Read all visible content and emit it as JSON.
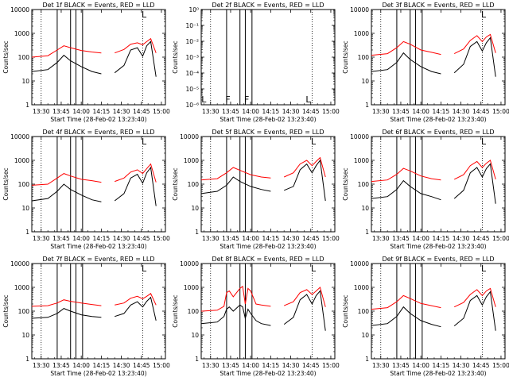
{
  "colors": {
    "events": "#000000",
    "lld": "#ff0000",
    "background": "#ffffff",
    "axes": "#000000"
  },
  "axes_common": {
    "xlabel": "Start Time (28-Feb-02 13:23:40)",
    "ylabel": "Counts/sec",
    "x_tick_labels": [
      "13:30",
      "13:45",
      "14:00",
      "14:15",
      "14:30",
      "14:45",
      "15:00"
    ],
    "x_tick_minutes": [
      30,
      45,
      60,
      75,
      90,
      105,
      120
    ],
    "xlim_minutes_after_13h": [
      23,
      123
    ],
    "ylog": true
  },
  "chart_data": [
    {
      "type": "line",
      "title": "Det 1f BLACK = Events, RED = LLD",
      "ylim": [
        1,
        10000
      ],
      "y_tick_labels": [
        "1",
        "10",
        "100",
        "1000",
        "10000"
      ],
      "flags": [
        {
          "label": "L",
          "t": 107
        }
      ],
      "dotted_lines": [
        30,
        106
      ],
      "solid_lines": [
        42,
        52,
        56,
        61
      ],
      "series": [
        {
          "color": "lld",
          "t": [
            23,
            35,
            42,
            47,
            52,
            60,
            68,
            75,
            78,
            85,
            92,
            97,
            102,
            106,
            109,
            112,
            116
          ],
          "v": [
            100,
            115,
            200,
            300,
            250,
            190,
            165,
            150,
            null,
            150,
            210,
            350,
            400,
            330,
            450,
            600,
            150
          ]
        },
        {
          "color": "events",
          "t": [
            23,
            35,
            42,
            47,
            52,
            60,
            68,
            75,
            78,
            85,
            92,
            97,
            102,
            106,
            109,
            112,
            116
          ],
          "v": [
            25,
            30,
            60,
            120,
            70,
            40,
            25,
            20,
            null,
            22,
            45,
            200,
            250,
            110,
            300,
            450,
            15
          ]
        }
      ]
    },
    {
      "type": "line",
      "title": "Det 2f BLACK = Events, RED = LLD",
      "ylim": [
        1e-06,
        1
      ],
      "y_tick_labels": [
        "10⁻⁶",
        "10⁻⁵",
        "10⁻⁴",
        "10⁻³",
        "10⁻²",
        "10⁻¹",
        "10⁰"
      ],
      "flags": [
        {
          "label": "L",
          "t": 25
        },
        {
          "label": "F",
          "t": 43
        },
        {
          "label": "F",
          "t": 57
        },
        {
          "label": "L",
          "t": 103
        }
      ],
      "dotted_lines": [
        30,
        106
      ],
      "solid_lines": [
        42,
        52,
        56,
        61
      ],
      "series": []
    },
    {
      "type": "line",
      "title": "Det 3f BLACK = Events, RED = LLD",
      "ylim": [
        1,
        10000
      ],
      "y_tick_labels": [
        "1",
        "10",
        "100",
        "1000",
        "10000"
      ],
      "flags": [
        {
          "label": "L",
          "t": 107
        }
      ],
      "dotted_lines": [
        30,
        106
      ],
      "solid_lines": [
        42,
        52,
        56,
        61
      ],
      "series": [
        {
          "color": "lld",
          "t": [
            23,
            35,
            42,
            47,
            52,
            60,
            68,
            75,
            78,
            85,
            92,
            97,
            102,
            106,
            109,
            112,
            116
          ],
          "v": [
            120,
            140,
            250,
            450,
            350,
            200,
            160,
            130,
            null,
            140,
            220,
            500,
            800,
            450,
            700,
            900,
            150
          ]
        },
        {
          "color": "events",
          "t": [
            23,
            35,
            42,
            47,
            52,
            60,
            68,
            75,
            78,
            85,
            92,
            97,
            102,
            106,
            109,
            112,
            116
          ],
          "v": [
            25,
            30,
            60,
            150,
            80,
            40,
            25,
            20,
            null,
            22,
            50,
            280,
            450,
            180,
            400,
            650,
            15
          ]
        }
      ]
    },
    {
      "type": "line",
      "title": "Det 4f BLACK = Events, RED = LLD",
      "ylim": [
        1,
        10000
      ],
      "y_tick_labels": [
        "1",
        "10",
        "100",
        "1000",
        "10000"
      ],
      "flags": [
        {
          "label": "L",
          "t": 107
        }
      ],
      "dotted_lines": [
        30,
        106
      ],
      "solid_lines": [
        42,
        52,
        56,
        61
      ],
      "series": [
        {
          "color": "lld",
          "t": [
            23,
            35,
            42,
            47,
            52,
            60,
            68,
            75,
            78,
            85,
            92,
            97,
            102,
            106,
            109,
            112,
            116
          ],
          "v": [
            90,
            100,
            180,
            280,
            220,
            160,
            140,
            120,
            null,
            130,
            180,
            320,
            400,
            280,
            450,
            700,
            120
          ]
        },
        {
          "color": "events",
          "t": [
            23,
            35,
            42,
            47,
            52,
            60,
            68,
            75,
            78,
            85,
            92,
            97,
            102,
            106,
            109,
            112,
            116
          ],
          "v": [
            20,
            25,
            50,
            100,
            60,
            35,
            22,
            18,
            null,
            20,
            40,
            180,
            260,
            110,
            300,
            500,
            12
          ]
        }
      ]
    },
    {
      "type": "line",
      "title": "Det 5f BLACK = Events, RED = LLD",
      "ylim": [
        1,
        10000
      ],
      "y_tick_labels": [
        "1",
        "10",
        "100",
        "1000",
        "10000"
      ],
      "flags": [
        {
          "label": "L",
          "t": 107
        }
      ],
      "dotted_lines": [
        30,
        106
      ],
      "solid_lines": [
        42,
        52,
        56,
        61
      ],
      "series": [
        {
          "color": "lld",
          "t": [
            23,
            35,
            42,
            47,
            52,
            60,
            68,
            75,
            78,
            85,
            92,
            97,
            102,
            106,
            109,
            112,
            116
          ],
          "v": [
            150,
            170,
            300,
            500,
            380,
            250,
            200,
            180,
            null,
            200,
            300,
            700,
            1000,
            600,
            900,
            1300,
            200
          ]
        },
        {
          "color": "events",
          "t": [
            23,
            35,
            42,
            47,
            52,
            60,
            68,
            75,
            78,
            85,
            92,
            97,
            102,
            106,
            109,
            112,
            116
          ],
          "v": [
            40,
            50,
            90,
            200,
            130,
            80,
            60,
            50,
            null,
            55,
            80,
            400,
            700,
            300,
            600,
            1000,
            20
          ]
        }
      ]
    },
    {
      "type": "line",
      "title": "Det 6f BLACK = Events, RED = LLD",
      "ylim": [
        1,
        10000
      ],
      "y_tick_labels": [
        "1",
        "10",
        "100",
        "1000",
        "10000"
      ],
      "flags": [
        {
          "label": "L",
          "t": 107
        }
      ],
      "dotted_lines": [
        30,
        106
      ],
      "solid_lines": [
        42,
        52,
        56,
        61
      ],
      "series": [
        {
          "color": "lld",
          "t": [
            23,
            35,
            42,
            47,
            52,
            60,
            68,
            75,
            78,
            85,
            92,
            97,
            102,
            106,
            109,
            112,
            116
          ],
          "v": [
            130,
            150,
            260,
            460,
            360,
            220,
            170,
            150,
            null,
            160,
            250,
            600,
            900,
            500,
            750,
            1000,
            160
          ]
        },
        {
          "color": "events",
          "t": [
            23,
            35,
            42,
            47,
            52,
            60,
            68,
            75,
            78,
            85,
            92,
            97,
            102,
            106,
            109,
            112,
            116
          ],
          "v": [
            25,
            30,
            60,
            140,
            80,
            40,
            30,
            22,
            null,
            25,
            55,
            300,
            500,
            200,
            450,
            700,
            15
          ]
        }
      ]
    },
    {
      "type": "line",
      "title": "Det 7f BLACK = Events, RED = LLD",
      "ylim": [
        1,
        10000
      ],
      "y_tick_labels": [
        "1",
        "10",
        "100",
        "1000",
        "10000"
      ],
      "flags": [
        {
          "label": "L",
          "t": 107
        }
      ],
      "dotted_lines": [
        30,
        106
      ],
      "solid_lines": [
        42,
        52,
        56,
        61
      ],
      "series": [
        {
          "color": "lld",
          "t": [
            23,
            35,
            42,
            47,
            52,
            60,
            68,
            75,
            78,
            85,
            92,
            97,
            102,
            106,
            109,
            112,
            116
          ],
          "v": [
            160,
            170,
            220,
            300,
            260,
            220,
            190,
            170,
            null,
            180,
            220,
            350,
            420,
            330,
            420,
            550,
            180
          ]
        },
        {
          "color": "events",
          "t": [
            23,
            35,
            42,
            47,
            52,
            60,
            68,
            75,
            78,
            85,
            92,
            97,
            102,
            106,
            109,
            112,
            116
          ],
          "v": [
            50,
            55,
            80,
            130,
            100,
            70,
            60,
            55,
            null,
            60,
            80,
            180,
            250,
            150,
            260,
            380,
            40
          ]
        }
      ]
    },
    {
      "type": "line",
      "title": "Det 8f BLACK = Events, RED = LLD",
      "ylim": [
        1,
        10000
      ],
      "y_tick_labels": [
        "1",
        "10",
        "100",
        "1000",
        "10000"
      ],
      "flags": [
        {
          "label": "L",
          "t": 107
        }
      ],
      "dotted_lines": [
        30,
        106
      ],
      "solid_lines": [
        42,
        52,
        56,
        61
      ],
      "series": [
        {
          "color": "lld",
          "t": [
            23,
            35,
            40,
            42,
            44,
            47,
            52,
            54,
            56,
            58,
            60,
            64,
            68,
            75,
            78,
            85,
            92,
            97,
            102,
            106,
            109,
            112,
            116
          ],
          "v": [
            100,
            110,
            160,
            600,
            700,
            400,
            900,
            1100,
            200,
            900,
            700,
            200,
            180,
            160,
            null,
            170,
            250,
            600,
            800,
            500,
            700,
            1000,
            150
          ]
        },
        {
          "color": "events",
          "t": [
            23,
            35,
            40,
            42,
            44,
            47,
            52,
            54,
            56,
            58,
            60,
            64,
            68,
            75,
            78,
            85,
            92,
            97,
            102,
            106,
            109,
            112,
            116
          ],
          "v": [
            30,
            35,
            60,
            120,
            150,
            100,
            180,
            150,
            50,
            120,
            80,
            40,
            30,
            25,
            null,
            28,
            55,
            300,
            500,
            200,
            450,
            700,
            15
          ]
        }
      ]
    },
    {
      "type": "line",
      "title": "Det 9f BLACK = Events, RED = LLD",
      "ylim": [
        1,
        10000
      ],
      "y_tick_labels": [
        "1",
        "10",
        "100",
        "1000",
        "10000"
      ],
      "flags": [
        {
          "label": "L",
          "t": 107
        }
      ],
      "dotted_lines": [
        30,
        106
      ],
      "solid_lines": [
        42,
        52,
        56,
        61
      ],
      "series": [
        {
          "color": "lld",
          "t": [
            23,
            35,
            42,
            47,
            52,
            60,
            68,
            75,
            78,
            85,
            92,
            97,
            102,
            106,
            109,
            112,
            116
          ],
          "v": [
            120,
            140,
            250,
            450,
            340,
            210,
            170,
            140,
            null,
            150,
            230,
            500,
            800,
            450,
            700,
            900,
            150
          ]
        },
        {
          "color": "events",
          "t": [
            23,
            35,
            42,
            47,
            52,
            60,
            68,
            75,
            78,
            85,
            92,
            97,
            102,
            106,
            109,
            112,
            116
          ],
          "v": [
            25,
            30,
            60,
            150,
            80,
            40,
            28,
            22,
            null,
            24,
            50,
            280,
            450,
            180,
            400,
            650,
            15
          ]
        }
      ]
    }
  ]
}
